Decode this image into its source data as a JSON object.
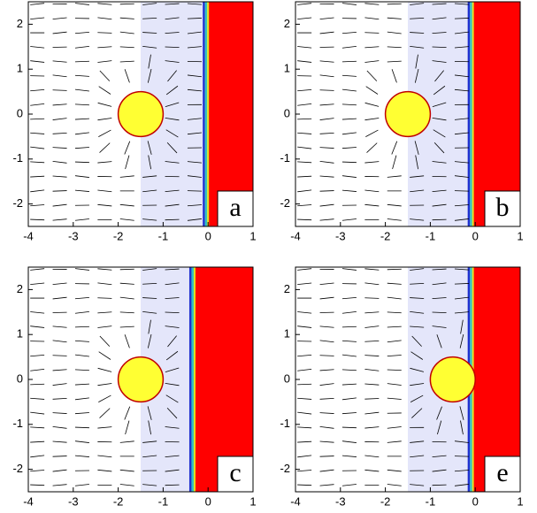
{
  "chart_data": [
    {
      "type": "field",
      "title": "a",
      "xlim": [
        -4,
        1
      ],
      "ylim": [
        -2.5,
        2.5
      ],
      "xticks": [
        -4,
        -3,
        -2,
        -1,
        0,
        1
      ],
      "yticks": [
        -2,
        -1,
        0,
        1,
        2
      ],
      "circle": {
        "x": -1.5,
        "y": 0,
        "r": 0.5
      },
      "region_start": -1.5,
      "front": 0
    },
    {
      "type": "field",
      "title": "b",
      "xlim": [
        -4,
        1
      ],
      "ylim": [
        -2.5,
        2.5
      ],
      "xticks": [
        -4,
        -3,
        -2,
        -1,
        0,
        1
      ],
      "yticks": [
        -2,
        -1,
        0,
        1,
        2
      ],
      "circle": {
        "x": -1.5,
        "y": 0,
        "r": 0.5
      },
      "region_start": -1.5,
      "front": -0.05
    },
    {
      "type": "field",
      "title": "c",
      "xlim": [
        -4,
        1
      ],
      "ylim": [
        -2.5,
        2.5
      ],
      "xticks": [
        -4,
        -3,
        -2,
        -1,
        0,
        1
      ],
      "yticks": [
        -2,
        -1,
        0,
        1,
        2
      ],
      "circle": {
        "x": -1.5,
        "y": 0,
        "r": 0.5
      },
      "region_start": -1.5,
      "front": -0.3
    },
    {
      "type": "field",
      "title": "e",
      "xlim": [
        -4,
        1
      ],
      "ylim": [
        -2.5,
        2.5
      ],
      "xticks": [
        -4,
        -3,
        -2,
        -1,
        0,
        1
      ],
      "yticks": [
        -2,
        -1,
        0,
        1,
        2
      ],
      "circle": {
        "x": -0.5,
        "y": 0,
        "r": 0.5
      },
      "region_start": -1.5,
      "front": -0.05
    }
  ]
}
